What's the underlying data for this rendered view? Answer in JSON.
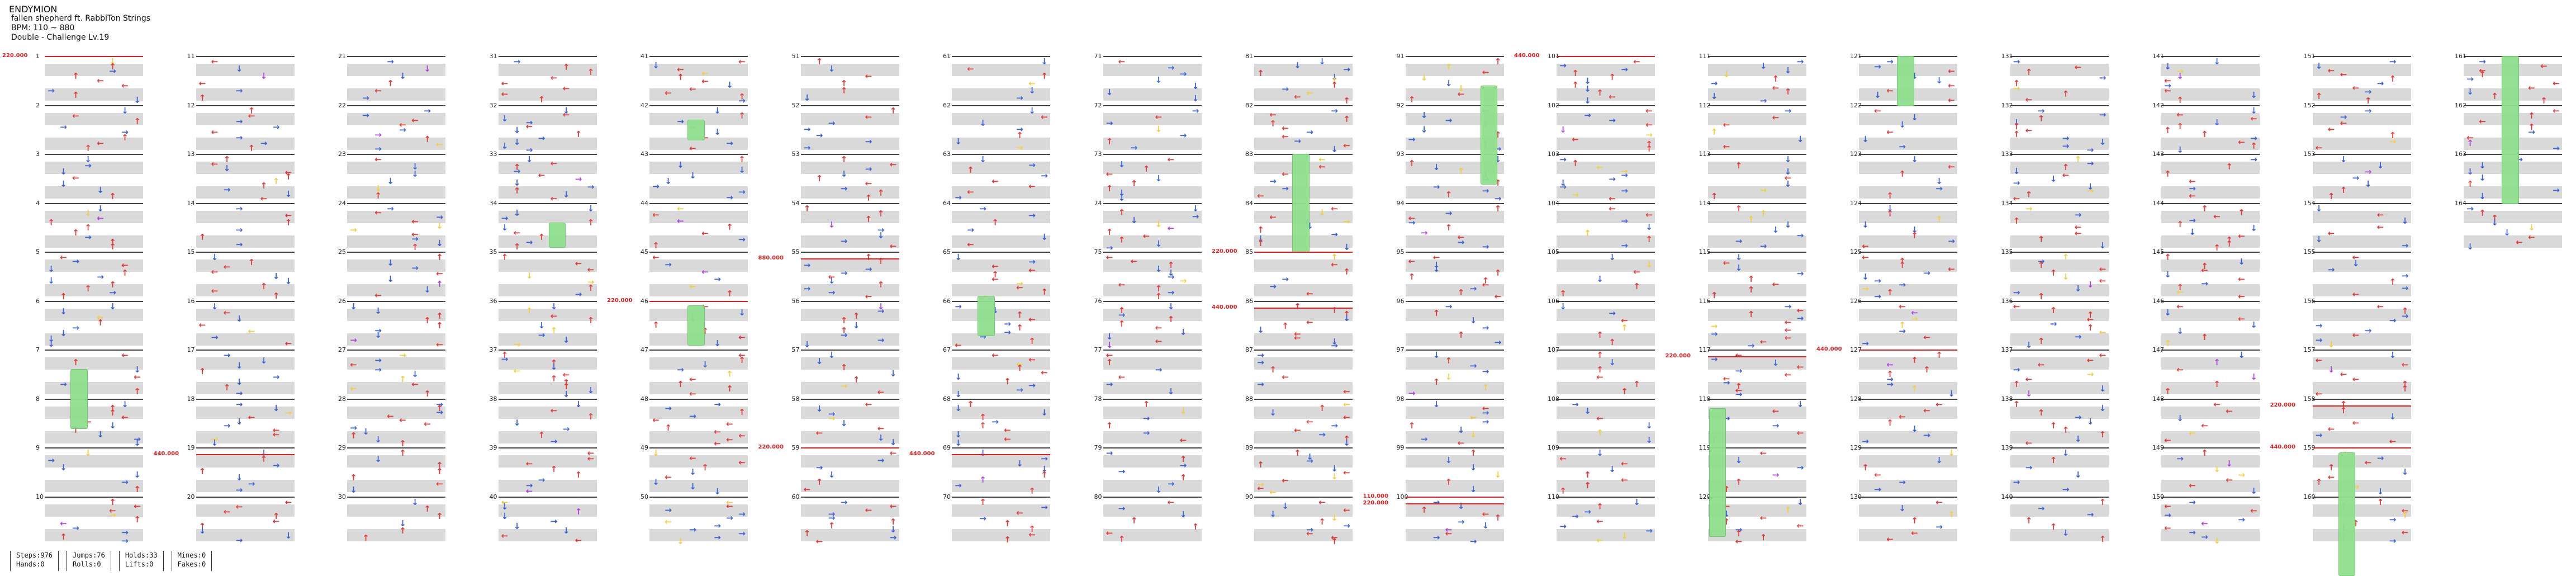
{
  "header": {
    "title": "ENDYMION",
    "artist": "fallen shepherd ft. RabbiTon Strings",
    "bpm": "BPM: 110 ~ 880",
    "difficulty": "Double - Challenge Lv.19"
  },
  "stats": {
    "steps": "Steps:976",
    "hands": "Hands:0",
    "jumps": "Jumps:76",
    "rolls": "Rolls:0",
    "holds": "Holds:33",
    "lifts": "Lifts:0",
    "mines": "Mines:0",
    "fakes": "Fakes:0"
  },
  "colors": {
    "left": "#e03a3a",
    "down": "#3a5fd8",
    "up": "#e03a3a",
    "right": "#3a5fd8",
    "yellow": "#f0d040",
    "purple": "#b040e0",
    "freeze": "#8fe08f",
    "bpm": "#e02020",
    "stripe": "#d9d9d9"
  },
  "chart_data": {
    "type": "step-chart",
    "columns": 17,
    "measures_per_column": 10,
    "total_measures": 164,
    "panels": 8,
    "bpm_changes": [
      {
        "measure": 1,
        "label": "220.000"
      },
      {
        "measure": 19,
        "label": "440.000"
      },
      {
        "measure": 46,
        "label": "220.000"
      },
      {
        "measure": 55,
        "label": "880.000"
      },
      {
        "measure": 59,
        "label": "220.000"
      },
      {
        "measure": 69,
        "label": "440.000"
      },
      {
        "measure": 85,
        "label": "220.000"
      },
      {
        "measure": 86,
        "label": "440.000"
      },
      {
        "measure": 101,
        "label": "440.000"
      },
      {
        "measure": 100,
        "label": "220.000"
      },
      {
        "measure": 100,
        "label": "110.000"
      },
      {
        "measure": 117,
        "label": "220.000"
      },
      {
        "measure": 127,
        "label": "440.000"
      },
      {
        "measure": 158,
        "label": "220.000"
      },
      {
        "measure": 159,
        "label": "440.000"
      }
    ],
    "measure_labels": [
      [
        "1",
        "2",
        "3",
        "4",
        "5",
        "6",
        "7",
        "8",
        "9",
        "10"
      ],
      [
        "11",
        "12",
        "13",
        "14",
        "15",
        "16",
        "17",
        "18",
        "19",
        "20"
      ],
      [
        "21",
        "22",
        "23",
        "24",
        "25",
        "26",
        "27",
        "28",
        "29",
        "30"
      ],
      [
        "31",
        "32",
        "33",
        "34",
        "35",
        "36",
        "37",
        "38",
        "39",
        "40"
      ],
      [
        "41",
        "42",
        "43",
        "44",
        "45",
        "46",
        "47",
        "48",
        "49",
        "50"
      ],
      [
        "51",
        "52",
        "53",
        "54",
        "55",
        "56",
        "57",
        "58",
        "59",
        "60"
      ],
      [
        "61",
        "62",
        "63",
        "64",
        "65",
        "66",
        "67",
        "68",
        "69",
        "70"
      ],
      [
        "71",
        "72",
        "73",
        "74",
        "75",
        "76",
        "77",
        "78",
        "79",
        "80"
      ],
      [
        "81",
        "82",
        "83",
        "84",
        "85",
        "86",
        "87",
        "88",
        "89",
        "90"
      ],
      [
        "91",
        "92",
        "93",
        "94",
        "95",
        "96",
        "97",
        "98",
        "99",
        "100"
      ],
      [
        "101",
        "102",
        "103",
        "104",
        "105",
        "106",
        "107",
        "108",
        "109",
        "110"
      ],
      [
        "111",
        "112",
        "113",
        "114",
        "115",
        "116",
        "117",
        "118",
        "119",
        "120"
      ],
      [
        "121",
        "122",
        "123",
        "124",
        "125",
        "126",
        "127",
        "128",
        "129",
        "130"
      ],
      [
        "131",
        "132",
        "133",
        "134",
        "135",
        "136",
        "137",
        "138",
        "139",
        "140"
      ],
      [
        "141",
        "142",
        "143",
        "144",
        "145",
        "146",
        "147",
        "148",
        "149",
        "150"
      ],
      [
        "151",
        "152",
        "153",
        "154",
        "155",
        "156",
        "157",
        "158",
        "159",
        "160"
      ],
      [
        "161",
        "162",
        "163",
        "164"
      ]
    ]
  }
}
